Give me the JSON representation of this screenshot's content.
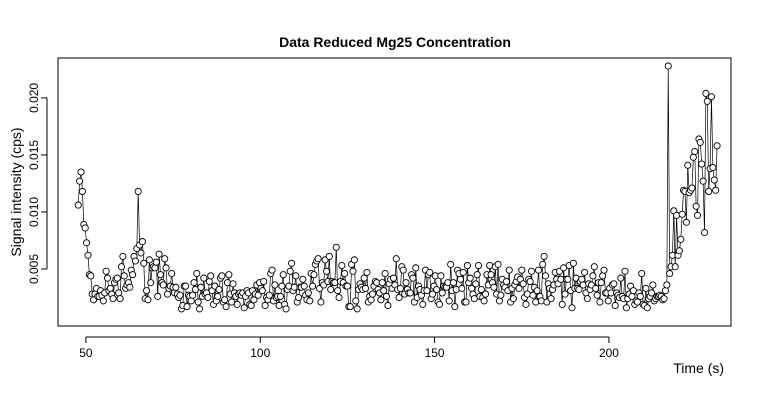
{
  "chart_data": {
    "type": "line",
    "title": "Data Reduced Mg25 Concentration",
    "xlabel": "Time (s)",
    "ylabel": "Signal intensity (cps)",
    "xlim": [
      42,
      235
    ],
    "ylim": [
      0.0,
      0.0235
    ],
    "x_ticks": [
      50,
      100,
      150,
      200
    ],
    "y_ticks": [
      0.005,
      0.01,
      0.015,
      0.02
    ],
    "grid": false,
    "legend": "none",
    "point_style": "open-circle-connected",
    "series": [
      {
        "x": [
          47.8,
          48.2,
          48.6,
          49.0,
          49.4,
          49.8,
          50.2,
          50.6,
          51.0,
          51.4,
          51.8,
          52.2,
          52.6,
          53.0,
          53.4,
          53.8,
          54.2,
          54.6,
          55.0,
          55.4,
          55.8,
          56.2,
          56.6,
          57.0,
          57.4,
          57.8,
          58.2,
          58.6,
          59.0,
          59.4,
          59.8,
          60.2,
          60.6,
          61.0,
          61.4,
          61.8,
          62.2,
          62.6,
          63.0,
          63.4,
          63.8,
          64.2,
          64.6,
          65.0,
          65.4,
          65.8,
          66.2,
          66.6,
          67.0,
          67.4,
          67.8,
          68.2,
          68.6,
          69.0,
          69.4,
          69.8,
          70.2,
          70.6,
          71.0,
          71.4,
          71.8,
          72.2,
          72.6,
          73.0,
          73.4,
          73.8,
          74.2,
          74.6,
          75.0,
          75.4,
          75.8,
          76.2,
          76.6,
          77.0,
          77.4,
          77.8,
          78.2,
          78.6,
          79.0,
          79.4,
          79.8,
          80.2,
          80.6,
          81.0,
          81.4,
          81.8,
          82.2,
          82.6,
          83.0,
          83.4,
          83.8,
          84.2,
          84.6,
          85.0,
          85.4,
          85.8,
          86.2,
          86.6,
          87.0,
          87.4,
          87.8,
          88.2,
          88.6,
          89.0,
          89.4,
          89.8,
          90.2,
          90.6,
          91.0,
          91.4,
          91.8,
          92.2,
          92.6,
          93.0,
          93.4,
          93.8,
          94.2,
          94.6,
          95.0,
          95.4,
          95.8,
          96.2,
          96.6,
          97.0,
          97.4,
          97.8,
          98.2,
          98.6,
          99.0,
          99.4,
          99.8,
          100.2,
          100.6,
          101.0,
          101.4,
          101.8,
          102.2,
          102.6,
          103.0,
          103.4,
          103.8,
          104.2,
          104.6,
          105.0,
          105.4,
          105.8,
          106.2,
          106.6,
          107.0,
          107.4,
          107.8,
          108.2,
          108.6,
          109.0,
          109.4,
          109.8,
          110.2,
          110.6,
          111.0,
          111.4,
          111.8,
          112.2,
          112.6,
          113.0,
          113.4,
          113.8,
          114.2,
          114.6,
          115.0,
          115.4,
          115.8,
          116.2,
          116.6,
          117.0,
          117.4,
          117.8,
          118.2,
          118.6,
          119.0,
          119.4,
          119.8,
          120.2,
          120.6,
          121.0,
          121.4,
          121.8,
          122.2,
          122.6,
          123.0,
          123.4,
          123.8,
          124.2,
          124.6,
          125.0,
          125.4,
          125.8,
          126.2,
          126.6,
          127.0,
          127.4,
          127.8,
          128.2,
          128.6,
          129.0,
          129.4,
          129.8,
          130.2,
          130.6,
          131.0,
          131.4,
          131.8,
          132.2,
          132.6,
          133.0,
          133.4,
          133.8,
          134.2,
          134.6,
          135.0,
          135.4,
          135.8,
          136.2,
          136.6,
          137.0,
          137.4,
          137.8,
          138.2,
          138.6,
          139.0,
          139.4,
          139.8,
          140.2,
          140.6,
          141.0,
          141.4,
          141.8,
          142.2,
          142.6,
          143.0,
          143.4,
          143.8,
          144.2,
          144.6,
          145.0,
          145.4,
          145.8,
          146.2,
          146.6,
          147.0,
          147.4,
          147.8,
          148.2,
          148.6,
          149.0,
          149.4,
          149.8,
          150.2,
          150.6,
          151.0,
          151.4,
          151.8,
          152.2,
          152.6,
          153.0,
          153.4,
          153.8,
          154.2,
          154.6,
          155.0,
          155.4,
          155.8,
          156.2,
          156.6,
          157.0,
          157.4,
          157.8,
          158.2,
          158.6,
          159.0,
          159.4,
          159.8,
          160.2,
          160.6,
          161.0,
          161.4,
          161.8,
          162.2,
          162.6,
          163.0,
          163.4,
          163.8,
          164.2,
          164.6,
          165.0,
          165.4,
          165.8,
          166.2,
          166.6,
          167.0,
          167.4,
          167.8,
          168.2,
          168.6,
          169.0,
          169.4,
          169.8,
          170.2,
          170.6,
          171.0,
          171.4,
          171.8,
          172.2,
          172.6,
          173.0,
          173.4,
          173.8,
          174.2,
          174.6,
          175.0,
          175.4,
          175.8,
          176.2,
          176.6,
          177.0,
          177.4,
          177.8,
          178.2,
          178.6,
          179.0,
          179.4,
          179.8,
          180.2,
          180.6,
          181.0,
          181.4,
          181.8,
          182.2,
          182.6,
          183.0,
          183.4,
          183.8,
          184.2,
          184.6,
          185.0,
          185.4,
          185.8,
          186.2,
          186.6,
          187.0,
          187.4,
          187.8,
          188.2,
          188.6,
          189.0,
          189.4,
          189.8,
          190.2,
          190.6,
          191.0,
          191.4,
          191.8,
          192.2,
          192.6,
          193.0,
          193.4,
          193.8,
          194.2,
          194.6,
          195.0,
          195.4,
          195.8,
          196.2,
          196.6,
          197.0,
          197.4,
          197.8,
          198.2,
          198.6,
          199.0,
          199.4,
          199.8,
          200.2,
          200.6,
          201.0,
          201.4,
          201.8,
          202.2,
          202.6,
          203.0,
          203.4,
          203.8,
          204.2,
          204.6,
          205.0,
          205.4,
          205.8,
          206.2,
          206.6,
          207.0,
          207.4,
          207.8,
          208.2,
          208.6,
          209.0,
          209.4,
          209.8,
          210.2,
          210.6,
          211.0,
          211.4,
          211.8,
          212.2,
          212.6,
          213.0,
          213.4,
          213.8,
          214.2,
          214.6,
          215.0,
          215.4,
          215.8,
          216.2,
          216.6,
          217.0,
          217.4,
          217.8,
          218.2,
          218.6,
          219.0,
          219.4,
          219.8,
          220.2,
          220.6,
          221.0,
          221.4,
          221.8,
          222.2,
          222.6,
          223.0,
          223.4,
          223.8,
          224.2,
          224.6,
          225.0,
          225.4,
          225.8,
          226.2,
          226.6,
          227.0,
          227.4,
          227.8,
          228.2,
          228.6,
          229.0,
          229.4,
          229.8,
          230.2,
          230.6,
          231.0
        ],
        "y": [
          0.0106,
          0.0127,
          0.0135,
          0.0118,
          0.0089,
          0.0086,
          0.0073,
          0.0062,
          0.0045,
          0.0044,
          0.0028,
          0.0023,
          0.0028,
          0.0033,
          0.0026,
          0.0026,
          0.0031,
          0.0027,
          0.0022,
          0.0029,
          0.0048,
          0.0042,
          0.0031,
          0.0033,
          0.0028,
          0.0024,
          0.0038,
          0.0041,
          0.0042,
          0.0029,
          0.0024,
          0.0052,
          0.0061,
          0.0044,
          0.0033,
          0.0036,
          0.0038,
          0.0034,
          0.0049,
          0.0045,
          0.0061,
          0.0057,
          0.0068,
          0.0118,
          0.0071,
          0.0064,
          0.0074,
          0.0055,
          0.0024,
          0.0031,
          0.0023,
          0.0058,
          0.0038,
          0.0051,
          0.0052,
          0.0051,
          0.0056,
          0.0026,
          0.0063,
          0.0045,
          0.0038,
          0.0036,
          0.0059,
          0.0051,
          0.0028,
          0.0033,
          0.0035,
          0.0046,
          0.0034,
          0.0029,
          0.0034,
          0.0028,
          0.0025,
          0.0027,
          0.0015,
          0.0018,
          0.0035,
          0.0035,
          0.0017,
          0.0027,
          0.0026,
          0.0022,
          0.0027,
          0.0038,
          0.0032,
          0.0046,
          0.0021,
          0.0015,
          0.0034,
          0.0026,
          0.0042,
          0.0028,
          0.0029,
          0.0025,
          0.0039,
          0.0044,
          0.0031,
          0.0019,
          0.0035,
          0.0022,
          0.0026,
          0.0032,
          0.0042,
          0.0044,
          0.0021,
          0.0023,
          0.0017,
          0.0038,
          0.0045,
          0.0028,
          0.0021,
          0.0037,
          0.0029,
          0.0026,
          0.0019,
          0.0028,
          0.0029,
          0.0027,
          0.0029,
          0.0016,
          0.0026,
          0.0031,
          0.0029,
          0.0019,
          0.0018,
          0.0031,
          0.0023,
          0.0028,
          0.0036,
          0.0027,
          0.0038,
          0.0033,
          0.0031,
          0.0039,
          0.0018,
          0.0025,
          0.0023,
          0.0027,
          0.0046,
          0.0049,
          0.0022,
          0.0036,
          0.0025,
          0.0026,
          0.0018,
          0.0026,
          0.0035,
          0.0045,
          0.0019,
          0.0015,
          0.0032,
          0.0035,
          0.0048,
          0.0055,
          0.0031,
          0.0034,
          0.0044,
          0.0021,
          0.0025,
          0.0034,
          0.0034,
          0.0041,
          0.0035,
          0.0027,
          0.0023,
          0.0029,
          0.0022,
          0.0046,
          0.0035,
          0.0045,
          0.0054,
          0.0057,
          0.0059,
          0.0033,
          0.0021,
          0.0038,
          0.0036,
          0.0058,
          0.0048,
          0.0039,
          0.0061,
          0.0032,
          0.0039,
          0.0038,
          0.0038,
          0.0069,
          0.0031,
          0.0025,
          0.0039,
          0.0053,
          0.0038,
          0.0046,
          0.0035,
          0.0035,
          0.0017,
          0.0017,
          0.0054,
          0.0048,
          0.0058,
          0.0022,
          0.0015,
          0.0032,
          0.0037,
          0.0034,
          0.0032,
          0.0042,
          0.0033,
          0.0047,
          0.0021,
          0.0026,
          0.0023,
          0.0028,
          0.0035,
          0.0039,
          0.0038,
          0.0032,
          0.0029,
          0.0023,
          0.0038,
          0.0031,
          0.0046,
          0.0026,
          0.0018,
          0.0037,
          0.0041,
          0.0033,
          0.0042,
          0.0036,
          0.0059,
          0.0032,
          0.0025,
          0.0033,
          0.0052,
          0.0049,
          0.0028,
          0.0038,
          0.0032,
          0.0029,
          0.0029,
          0.0045,
          0.0042,
          0.0021,
          0.0051,
          0.0025,
          0.0035,
          0.0032,
          0.0027,
          0.0019,
          0.0031,
          0.0049,
          0.0031,
          0.0045,
          0.0047,
          0.0024,
          0.0028,
          0.0035,
          0.0044,
          0.0032,
          0.0021,
          0.0019,
          0.0044,
          0.0029,
          0.0035,
          0.0034,
          0.0034,
          0.0038,
          0.0022,
          0.0054,
          0.0031,
          0.0038,
          0.0017,
          0.0032,
          0.0049,
          0.0046,
          0.0041,
          0.0033,
          0.0047,
          0.0021,
          0.0021,
          0.0053,
          0.0038,
          0.0042,
          0.0033,
          0.0028,
          0.0024,
          0.0037,
          0.0045,
          0.0053,
          0.0026,
          0.0032,
          0.0025,
          0.0022,
          0.0028,
          0.0045,
          0.0036,
          0.0053,
          0.0045,
          0.0038,
          0.0034,
          0.0052,
          0.0028,
          0.0054,
          0.0022,
          0.0027,
          0.0041,
          0.0036,
          0.0034,
          0.0039,
          0.0031,
          0.0049,
          0.0021,
          0.0033,
          0.0024,
          0.0036,
          0.0039,
          0.0043,
          0.0033,
          0.0041,
          0.0049,
          0.0037,
          0.0025,
          0.0019,
          0.0028,
          0.0041,
          0.0039,
          0.0048,
          0.0027,
          0.0034,
          0.0021,
          0.0031,
          0.0049,
          0.0026,
          0.0022,
          0.0054,
          0.0061,
          0.0044,
          0.0021,
          0.0037,
          0.0033,
          0.0024,
          0.0032,
          0.0036,
          0.0047,
          0.0041,
          0.0037,
          0.0048,
          0.0041,
          0.0019,
          0.0051,
          0.0028,
          0.0041,
          0.0041,
          0.0053,
          0.0031,
          0.0016,
          0.0055,
          0.0033,
          0.0042,
          0.0033,
          0.0032,
          0.0039,
          0.0041,
          0.0036,
          0.0047,
          0.0029,
          0.0024,
          0.0037,
          0.0032,
          0.0036,
          0.0044,
          0.0052,
          0.0033,
          0.0027,
          0.0038,
          0.0021,
          0.0038,
          0.0044,
          0.0049,
          0.0029,
          0.0029,
          0.0022,
          0.0033,
          0.0029,
          0.0036,
          0.0037,
          0.0018,
          0.0029,
          0.0027,
          0.0025,
          0.0042,
          0.0026,
          0.0024,
          0.0048,
          0.0016,
          0.0024,
          0.0028,
          0.0035,
          0.0026,
          0.0031,
          0.0019,
          0.0022,
          0.0021,
          0.0029,
          0.0026,
          0.0046,
          0.0019,
          0.0018,
          0.0033,
          0.0016,
          0.0024,
          0.0026,
          0.0029,
          0.0036,
          0.0022,
          0.0024,
          0.0026,
          0.0026,
          0.0027,
          0.0026,
          0.0023,
          0.0024,
          0.0031,
          0.0036,
          0.0228,
          0.0046,
          0.0052,
          0.0062,
          0.0101,
          0.0052,
          0.0097,
          0.0062,
          0.0066,
          0.0076,
          0.0098,
          0.0119,
          0.0118,
          0.0091,
          0.0141,
          0.0117,
          0.0119,
          0.0121,
          0.0148,
          0.0153,
          0.0105,
          0.0097,
          0.0164,
          0.0161,
          0.0142,
          0.0127,
          0.0082,
          0.0204,
          0.0197,
          0.0118,
          0.0138,
          0.0201,
          0.0139,
          0.0128,
          0.0119,
          0.0158
        ]
      }
    ]
  }
}
